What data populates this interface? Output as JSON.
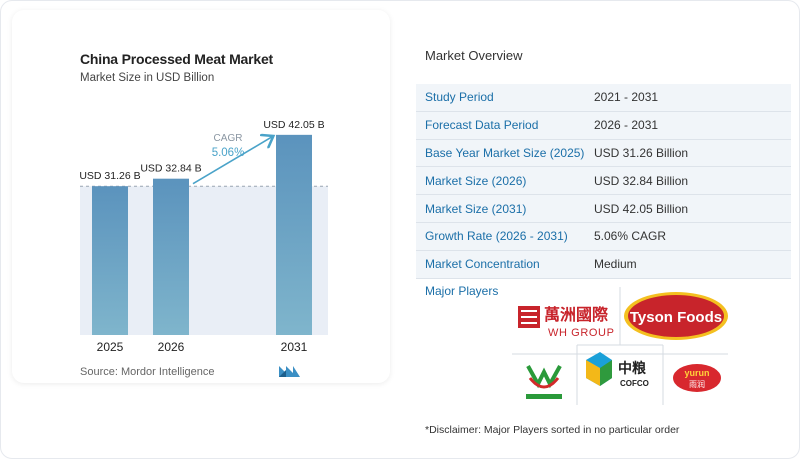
{
  "chart_data": {
    "type": "bar",
    "title": "China Processed Meat Market",
    "subtitle": "Market Size in USD Billion",
    "categories": [
      "2025",
      "2026",
      "2031"
    ],
    "values": [
      31.26,
      32.84,
      42.05
    ],
    "value_labels": [
      "USD 31.26 B",
      "USD 32.84 B",
      "USD 42.05 B"
    ],
    "cagr_label": "CAGR",
    "cagr_value": "5.06%",
    "colors": {
      "bar_top": "#5b93bd",
      "bar_bottom": "#7fb5cc",
      "cagr": "#4aa3c9",
      "band": "#e9eef6"
    }
  },
  "source": "Source:  Mordor Intelligence",
  "overview": {
    "title": "Market Overview",
    "rows": [
      {
        "key": "Study Period",
        "value": "2021 - 2031"
      },
      {
        "key": "Forecast Data Period",
        "value": "2026 - 2031"
      },
      {
        "key": "Base Year Market Size (2025)",
        "value": "USD 31.26 Billion"
      },
      {
        "key": "Market Size (2026)",
        "value": "USD 32.84 Billion"
      },
      {
        "key": "Market Size (2031)",
        "value": "USD 42.05 Billion"
      },
      {
        "key": "Growth Rate (2026 - 2031)",
        "value": "5.06% CAGR"
      },
      {
        "key": "Market Concentration",
        "value": "Medium"
      }
    ],
    "players_label": "Major Players",
    "logos": {
      "wh_chinese": "萬洲國際",
      "wh_latin": "WH GROUP",
      "tyson": "Tyson Foods",
      "cofco_chinese": "中粮",
      "cofco_latin": "COFCO",
      "yurun_latin": "yurun",
      "yurun_chinese": "雨润"
    }
  },
  "disclaimer": "*Disclaimer: Major Players sorted in no particular order"
}
